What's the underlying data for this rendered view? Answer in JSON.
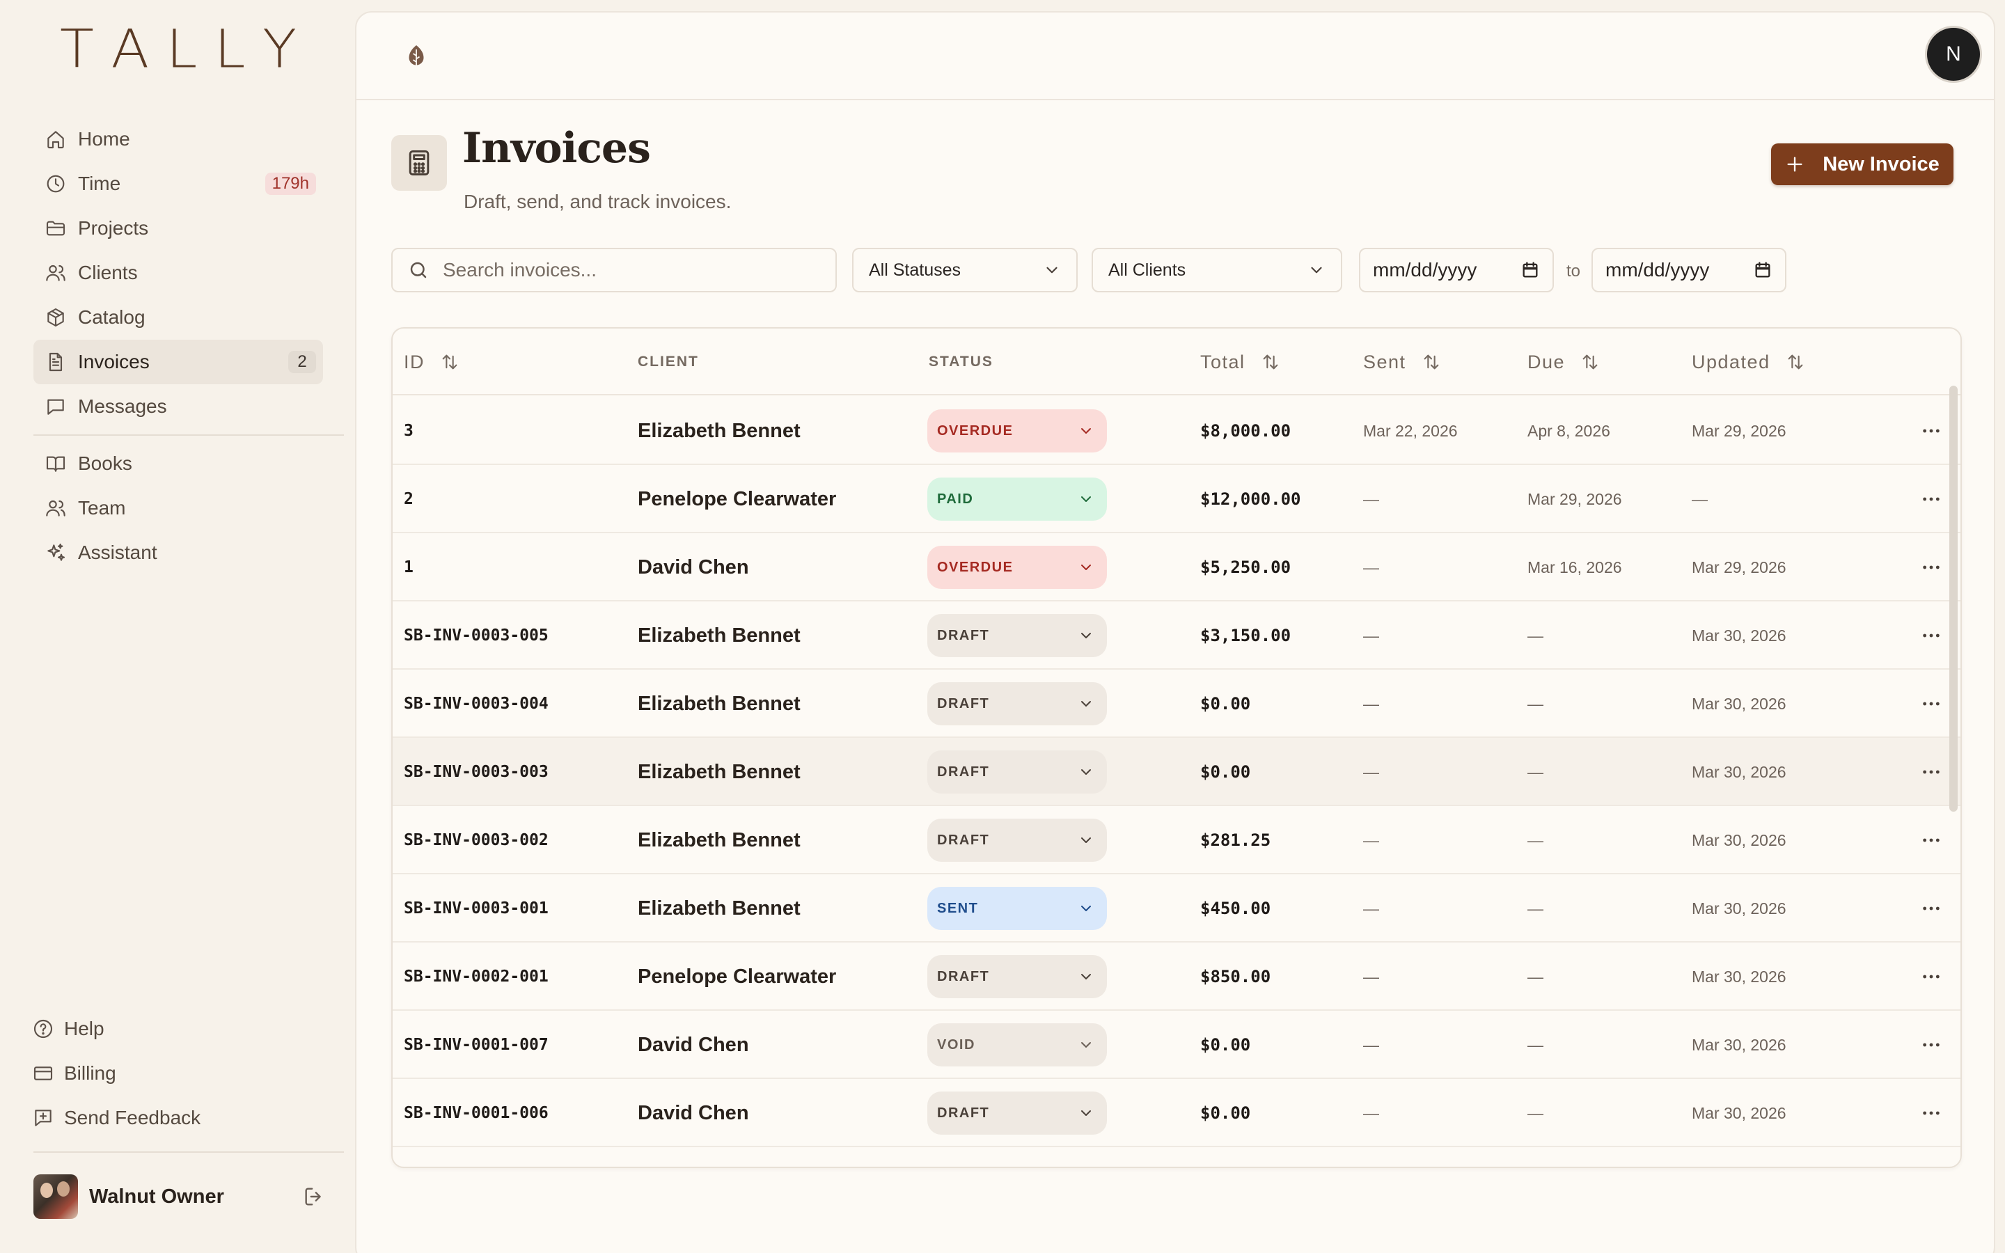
{
  "app": {
    "logo_letters": [
      "T",
      "A",
      "L",
      "L",
      "Y"
    ]
  },
  "sidebar": {
    "items": [
      {
        "label": "Home",
        "icon": "home-icon"
      },
      {
        "label": "Time",
        "icon": "clock-icon",
        "badge": "179h"
      },
      {
        "label": "Projects",
        "icon": "folder-icon"
      },
      {
        "label": "Clients",
        "icon": "users-icon"
      },
      {
        "label": "Catalog",
        "icon": "package-icon"
      },
      {
        "label": "Invoices",
        "icon": "file-text-icon",
        "badge": "2",
        "active": true
      },
      {
        "label": "Messages",
        "icon": "message-square-icon"
      }
    ],
    "items2": [
      {
        "label": "Books",
        "icon": "book-open-icon"
      },
      {
        "label": "Team",
        "icon": "team-icon"
      },
      {
        "label": "Assistant",
        "icon": "sparkles-icon"
      }
    ],
    "bottom": [
      {
        "label": "Help",
        "icon": "help-circle-icon"
      },
      {
        "label": "Billing",
        "icon": "credit-card-icon"
      },
      {
        "label": "Send Feedback",
        "icon": "feedback-icon"
      }
    ],
    "user": {
      "name": "Walnut Owner"
    }
  },
  "topbar": {
    "user_initial": "N"
  },
  "page": {
    "title": "Invoices",
    "subtitle": "Draft, send, and track invoices.",
    "new_button": "New Invoice"
  },
  "filters": {
    "search_placeholder": "Search invoices...",
    "status_value": "All Statuses",
    "client_value": "All Clients",
    "date_from": "mm/dd/yyyy",
    "date_to": "mm/dd/yyyy",
    "to_label": "to"
  },
  "table": {
    "headers": {
      "id": "ID",
      "client": "CLIENT",
      "status": "STATUS",
      "total": "Total",
      "sent": "Sent",
      "due": "Due",
      "updated": "Updated"
    },
    "rows": [
      {
        "id": "3",
        "client": "Elizabeth Bennet",
        "status": "OVERDUE",
        "status_kind": "overdue",
        "total": "$8,000.00",
        "sent": "Mar 22, 2026",
        "due": "Apr 8, 2026",
        "updated": "Mar 29, 2026"
      },
      {
        "id": "2",
        "client": "Penelope Clearwater",
        "status": "PAID",
        "status_kind": "paid",
        "total": "$12,000.00",
        "sent": "—",
        "due": "Mar 29, 2026",
        "updated": "—"
      },
      {
        "id": "1",
        "client": "David Chen",
        "status": "OVERDUE",
        "status_kind": "overdue",
        "total": "$5,250.00",
        "sent": "—",
        "due": "Mar 16, 2026",
        "updated": "Mar 29, 2026"
      },
      {
        "id": "SB-INV-0003-005",
        "client": "Elizabeth Bennet",
        "status": "DRAFT",
        "status_kind": "draft",
        "total": "$3,150.00",
        "sent": "—",
        "due": "—",
        "updated": "Mar 30, 2026"
      },
      {
        "id": "SB-INV-0003-004",
        "client": "Elizabeth Bennet",
        "status": "DRAFT",
        "status_kind": "draft",
        "total": "$0.00",
        "sent": "—",
        "due": "—",
        "updated": "Mar 30, 2026"
      },
      {
        "id": "SB-INV-0003-003",
        "client": "Elizabeth Bennet",
        "status": "DRAFT",
        "status_kind": "draft",
        "total": "$0.00",
        "sent": "—",
        "due": "—",
        "updated": "Mar 30, 2026",
        "hover": true
      },
      {
        "id": "SB-INV-0003-002",
        "client": "Elizabeth Bennet",
        "status": "DRAFT",
        "status_kind": "draft",
        "total": "$281.25",
        "sent": "—",
        "due": "—",
        "updated": "Mar 30, 2026"
      },
      {
        "id": "SB-INV-0003-001",
        "client": "Elizabeth Bennet",
        "status": "SENT",
        "status_kind": "sent",
        "total": "$450.00",
        "sent": "—",
        "due": "—",
        "updated": "Mar 30, 2026"
      },
      {
        "id": "SB-INV-0002-001",
        "client": "Penelope Clearwater",
        "status": "DRAFT",
        "status_kind": "draft",
        "total": "$850.00",
        "sent": "—",
        "due": "—",
        "updated": "Mar 30, 2026"
      },
      {
        "id": "SB-INV-0001-007",
        "client": "David Chen",
        "status": "VOID",
        "status_kind": "void",
        "total": "$0.00",
        "sent": "—",
        "due": "—",
        "updated": "Mar 30, 2026"
      },
      {
        "id": "SB-INV-0001-006",
        "client": "David Chen",
        "status": "DRAFT",
        "status_kind": "draft",
        "total": "$0.00",
        "sent": "—",
        "due": "—",
        "updated": "Mar 30, 2026"
      }
    ]
  },
  "colors": {
    "accent": "#7d3d1c",
    "overdue": "#a52a22",
    "paid": "#1f6b3b",
    "sent": "#1f4d8c"
  }
}
